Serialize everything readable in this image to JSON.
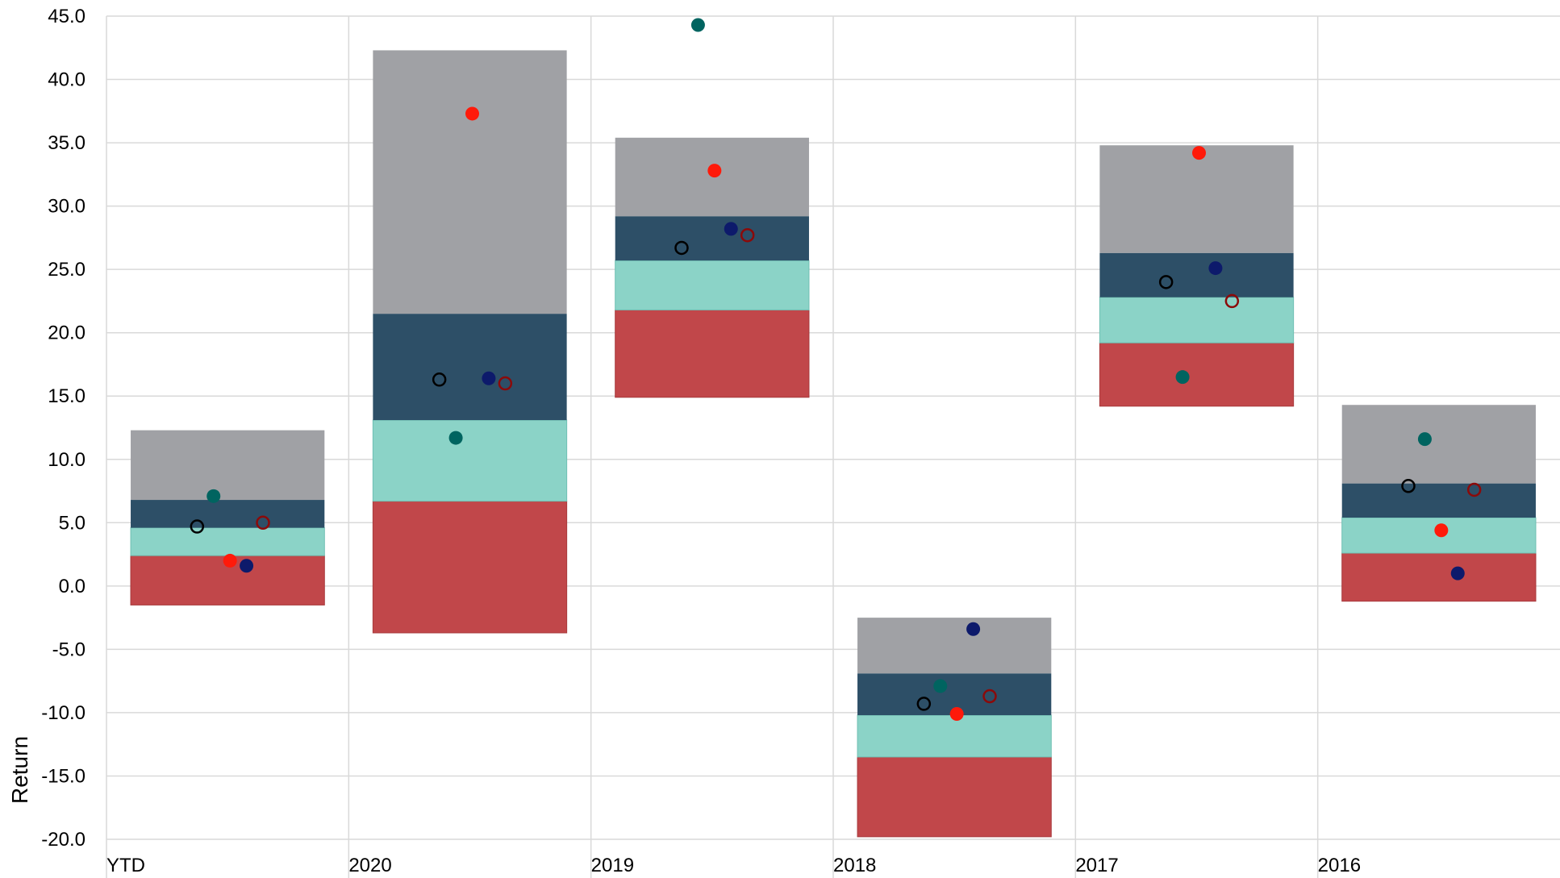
{
  "chart_data": {
    "type": "range_bar",
    "y_label": "Return",
    "categories": [
      "YTD",
      "2020",
      "2019",
      "2018",
      "2017",
      "2016"
    ],
    "range_start": [
      -1.5,
      -3.7,
      14.9,
      -19.8,
      14.2,
      -1.2
    ],
    "series": [
      {
        "color": "#c1474a",
        "values": [
          3.9,
          10.4,
          6.9,
          6.3,
          5.0,
          3.8
        ]
      },
      {
        "color": "#8bd3c7",
        "values": [
          2.2,
          6.4,
          3.9,
          3.3,
          3.6,
          2.8
        ]
      },
      {
        "color": "#2d4f67",
        "values": [
          2.2,
          8.4,
          3.5,
          3.3,
          3.5,
          2.7
        ]
      },
      {
        "color": "#a0a1a5",
        "values": [
          5.5,
          20.8,
          6.2,
          4.4,
          8.5,
          6.2
        ]
      }
    ],
    "markers": [
      {
        "color": "#000000",
        "filled": false,
        "values": [
          4.7,
          16.3,
          26.7,
          -9.3,
          24.0,
          7.9
        ]
      },
      {
        "color": "#006460",
        "filled": true,
        "values": [
          7.1,
          11.7,
          44.3,
          -7.9,
          16.5,
          11.6
        ]
      },
      {
        "color": "#ff1a0a",
        "filled": true,
        "values": [
          2.0,
          37.3,
          32.8,
          -10.1,
          34.2,
          4.4
        ]
      },
      {
        "color": "#0d1a6b",
        "filled": true,
        "values": [
          1.6,
          16.4,
          28.2,
          -3.4,
          25.1,
          1.0
        ]
      },
      {
        "color": "#8b0a0a",
        "filled": false,
        "values": [
          5.0,
          16.0,
          27.7,
          -8.7,
          22.5,
          7.6
        ]
      }
    ],
    "ylim": [
      -20,
      45
    ],
    "yticks": [
      {
        "value": 45,
        "label": "45.0"
      },
      {
        "value": 40,
        "label": "40.0"
      },
      {
        "value": 35,
        "label": "35.0"
      },
      {
        "value": 30,
        "label": "30.0"
      },
      {
        "value": 25,
        "label": "25.0"
      },
      {
        "value": 20,
        "label": "20.0"
      },
      {
        "value": 15,
        "label": "15.0"
      },
      {
        "value": 10,
        "label": "10.0"
      },
      {
        "value": 5,
        "label": "5.0"
      },
      {
        "value": 0,
        "label": "0.0"
      },
      {
        "value": -5,
        "label": "-5.0"
      },
      {
        "value": -10,
        "label": "-10.0"
      },
      {
        "value": -15,
        "label": "-15.0"
      },
      {
        "value": -20,
        "label": "-20.0"
      }
    ],
    "grid": true
  }
}
